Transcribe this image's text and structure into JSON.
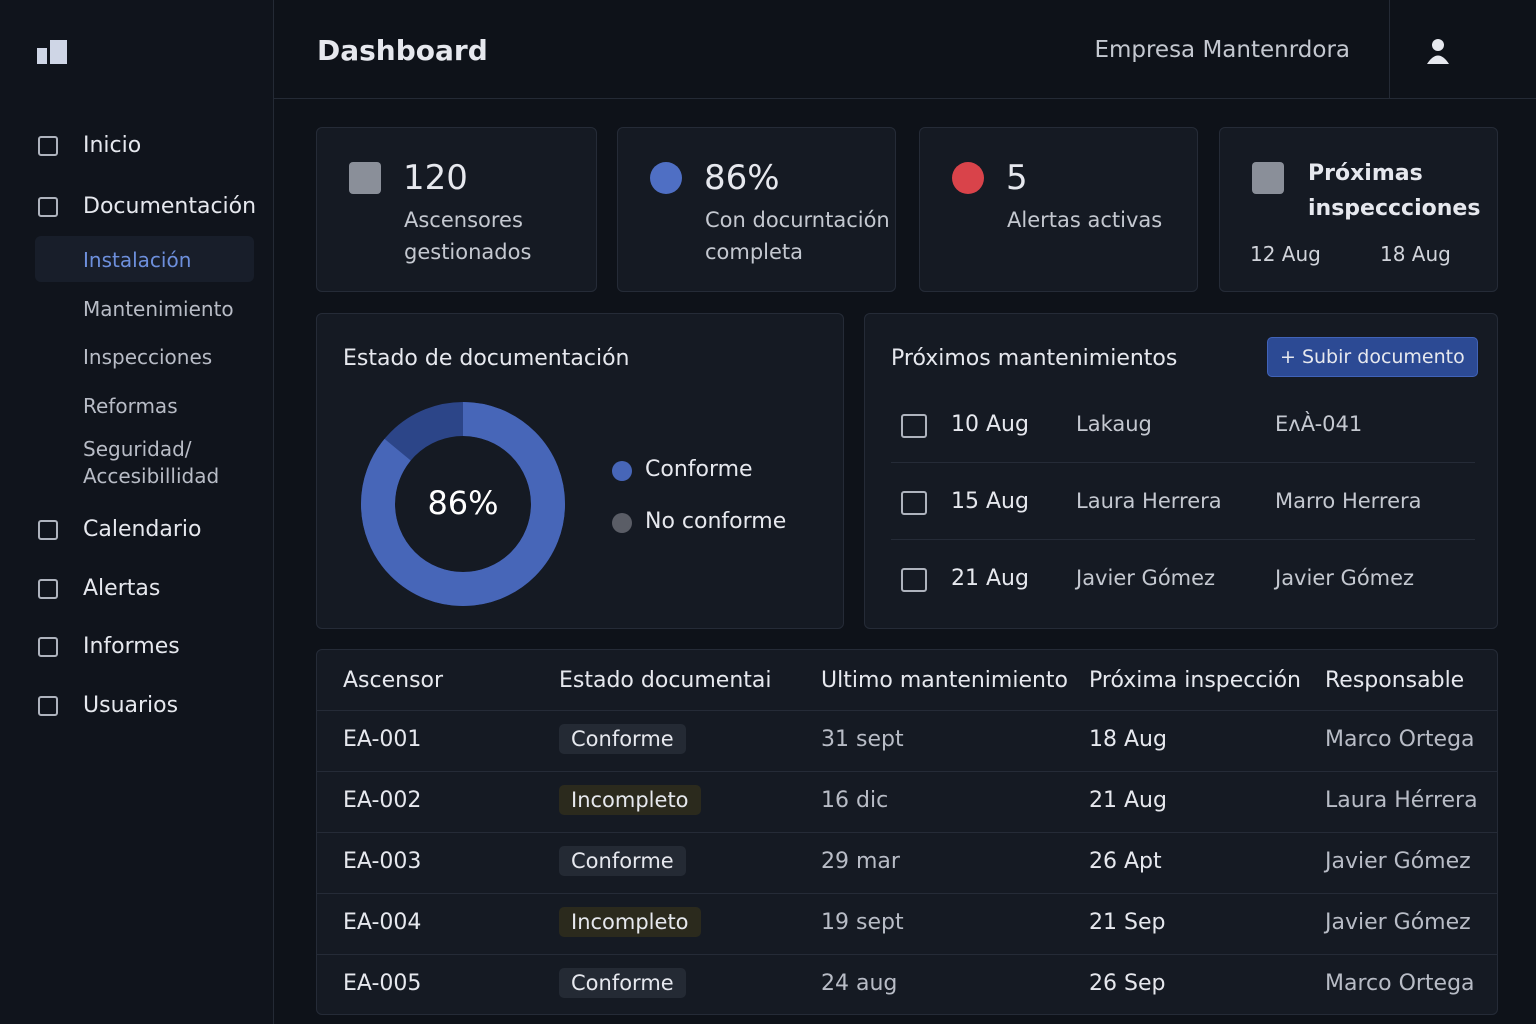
{
  "header": {
    "title": "Dashboard",
    "company": "Empresa Mantenrdora"
  },
  "sidebar": {
    "nav": [
      "Inicio",
      "Documentación",
      "Calendario",
      "Alertas",
      "Informes",
      "Usuarios"
    ],
    "subnav": [
      "Instalación",
      "Mantenimiento",
      "Inspecciones",
      "Reformas",
      "Seguridad/ Accesibillidad"
    ]
  },
  "stats": [
    {
      "value": "120",
      "label": "Ascensores gestionados"
    },
    {
      "value": "86%",
      "label": "Con docurntación completa"
    },
    {
      "value": "5",
      "label": "Alertas activas"
    },
    {
      "label": "Próximas inspeccciones",
      "from": "12 Aug",
      "to": "18 Aug"
    }
  ],
  "donut": {
    "title": "Estado de documentación",
    "center_label": "86%",
    "value": 86,
    "legend": [
      "Conforme",
      "No conforme"
    ],
    "colors": [
      "#4766b8",
      "#5a5d66"
    ]
  },
  "maintenance": {
    "title": "Próximos mantenimientos",
    "button": "+ Subir documento",
    "rows": [
      [
        "10 Aug",
        "Lakaug",
        "EʌÀ-041"
      ],
      [
        "15 Aug",
        "Laura Herrera",
        "Marro Herrera"
      ],
      [
        "21 Aug",
        "Javier Gómez",
        "Javier Gómez"
      ]
    ]
  },
  "table": {
    "headers": [
      "Ascensor",
      "Estado documentai",
      "Ultimo mantenimiento",
      "Próxima inspección",
      "Responsable"
    ],
    "rows": [
      [
        "EA-001",
        "Conforme",
        "31 sept",
        "18 Aug",
        "Marco Ortega"
      ],
      [
        "EA-002",
        "Incompleto",
        "16 dic",
        "21 Aug",
        "Laura Hérrera"
      ],
      [
        "EA-003",
        "Conforme",
        "29 mar",
        "26 Apt",
        "Javier Gómez"
      ],
      [
        "EA-004",
        "Incompleto",
        "19 sept",
        "21 Sep",
        "Javier Gómez"
      ],
      [
        "EA-005",
        "Conforme",
        "24 aug",
        "26 Sep",
        "Marco Ortega"
      ]
    ]
  }
}
